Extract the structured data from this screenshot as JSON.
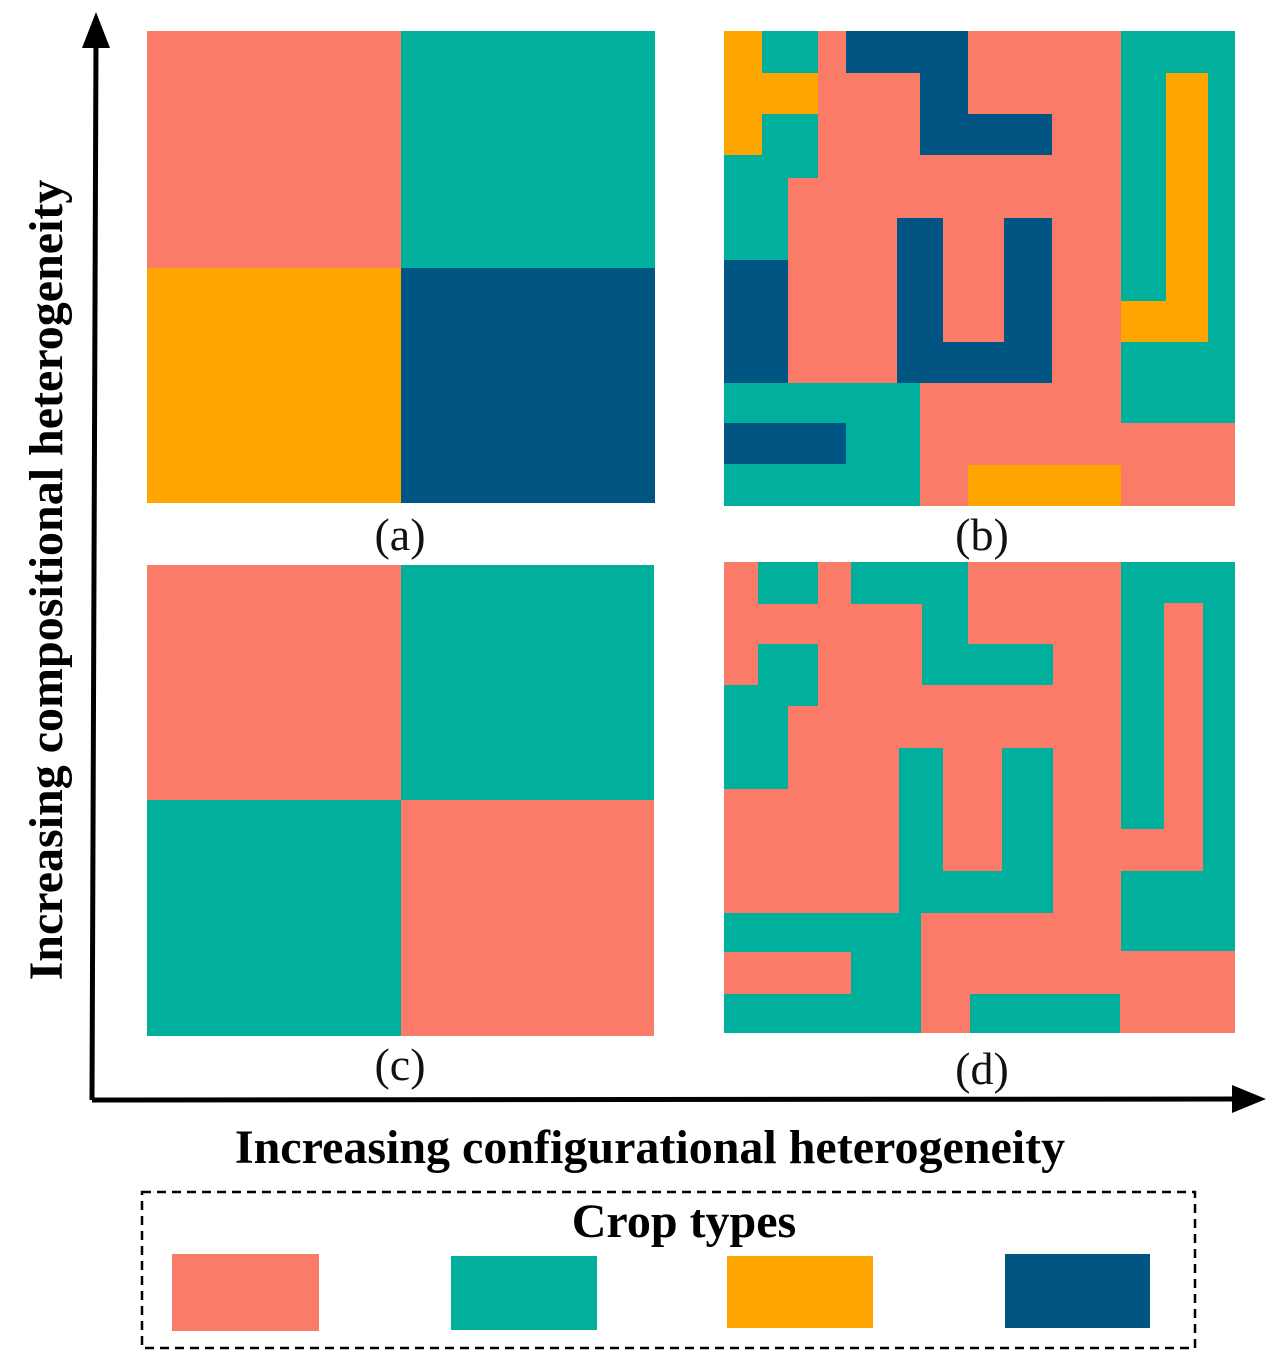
{
  "colors": {
    "salmon": "#FA7B68",
    "teal": "#00B09D",
    "orange": "#FFA500",
    "navy": "#005582"
  },
  "axes": {
    "y_title": "Increasing compositional heterogeneity",
    "x_title": "Increasing configurational heterogeneity"
  },
  "panels": {
    "a": {
      "label": "(a)"
    },
    "b": {
      "label": "(b)"
    },
    "c": {
      "label": "(c)"
    },
    "d": {
      "label": "(d)"
    }
  },
  "legend": {
    "title": "Crop types",
    "swatches": [
      "salmon",
      "teal",
      "orange",
      "navy"
    ]
  }
}
